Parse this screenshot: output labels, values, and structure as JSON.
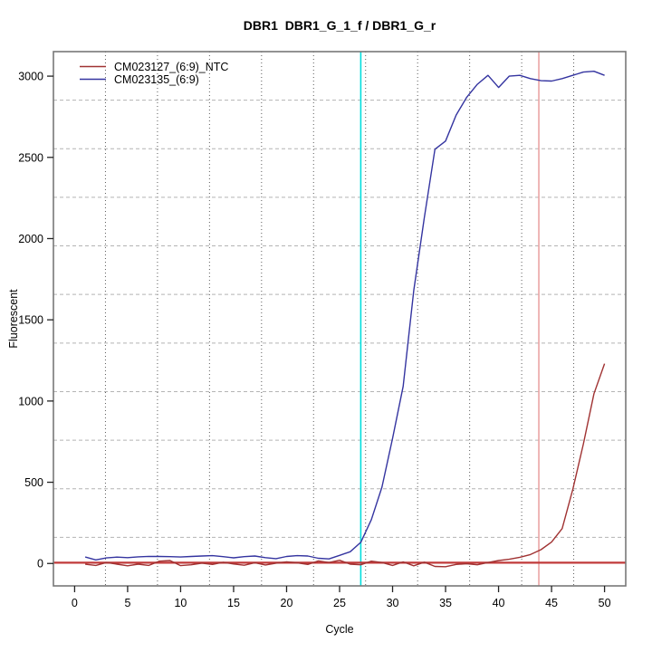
{
  "chart_data": {
    "type": "line",
    "title": "DBR1  DBR1_G_1_f / DBR1_G_r",
    "xlabel": "Cycle",
    "ylabel": "Fluorescent",
    "x_ticks": [
      0,
      5,
      10,
      15,
      20,
      25,
      30,
      35,
      40,
      45,
      50
    ],
    "y_ticks": [
      0,
      500,
      1000,
      1500,
      2000,
      2500,
      3000
    ],
    "xlim": [
      0,
      50
    ],
    "ylim": [
      -20,
      3030
    ],
    "x_range_expanded": [
      -2,
      52
    ],
    "y_range_expanded": [
      -138,
      3151
    ],
    "x_start_cycle": 1,
    "grid": {
      "cells_x": 11,
      "cells_y": 11,
      "horizontal_style": "dashed",
      "vertical_style": "dotted",
      "horizontal_color": "#b4b4b4",
      "vertical_color": "#5a5a5a"
    },
    "series": [
      {
        "name": "CM023127_(6:9)_NTC",
        "color": "#a03232",
        "values": [
          -5,
          -12,
          6,
          -4,
          -14,
          -4,
          -12,
          14,
          18,
          -13,
          -8,
          2,
          -6,
          7,
          -3,
          -11,
          4,
          -9,
          2,
          10,
          4,
          -6,
          16,
          6,
          20,
          -4,
          -8,
          14,
          6,
          -12,
          10,
          -14,
          8,
          -18,
          -20,
          -6,
          -2,
          -8,
          6,
          18,
          26,
          38,
          55,
          85,
          132,
          215,
          455,
          735,
          1045,
          1230
        ]
      },
      {
        "name": "CM023135_(6:9)",
        "color": "#3434a0",
        "values": [
          40,
          22,
          34,
          39,
          36,
          41,
          44,
          43,
          42,
          40,
          43,
          46,
          48,
          42,
          35,
          42,
          46,
          36,
          30,
          43,
          48,
          46,
          32,
          28,
          50,
          72,
          130,
          270,
          470,
          770,
          1090,
          1680,
          2130,
          2550,
          2600,
          2760,
          2870,
          2950,
          3005,
          2930,
          3000,
          3005,
          2985,
          2972,
          2970,
          2985,
          3005,
          3025,
          3030,
          3005
        ]
      }
    ],
    "threshold_line": {
      "y": 5,
      "color": "#c03a3a"
    },
    "ct_lines": [
      {
        "x": 27.0,
        "color": "#00dede"
      },
      {
        "x": 43.8,
        "color": "#eaa4a4"
      }
    ],
    "legend": {
      "position": "topleft",
      "entries": [
        {
          "label": "CM023127_(6:9)_NTC",
          "color": "#a03232"
        },
        {
          "label": "CM023135_(6:9)",
          "color": "#3434a0"
        }
      ]
    },
    "frame_color": "#787878",
    "tick_color": "#222222"
  }
}
